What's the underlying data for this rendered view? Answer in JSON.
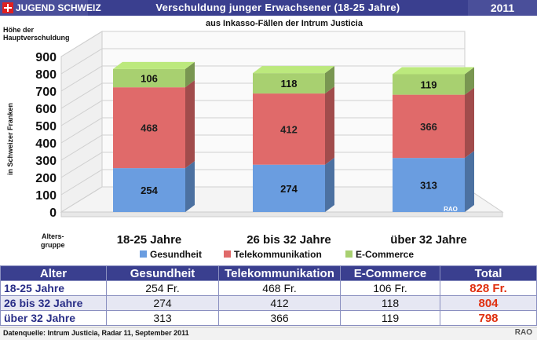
{
  "header": {
    "brand": "JUGEND SCHWEIZ",
    "title": "Verschuldung junger Erwachsener (18-25 Jahre)",
    "year": "2011"
  },
  "chart": {
    "subtitle": "aus Inkasso-Fällen der Intrum Justicia",
    "y_title_top": "Höhe der\nHauptverschuldung",
    "y_axis_label": "in Schweizer Franken",
    "x_axis_label": "Alters-\ngruppe",
    "watermark": "RAO"
  },
  "chart_data": {
    "type": "bar",
    "stacked": true,
    "categories": [
      "18-25 Jahre",
      "26 bis 32 Jahre",
      "über 32 Jahre"
    ],
    "series": [
      {
        "name": "Gesundheit",
        "values": [
          254,
          274,
          313
        ],
        "color": "#6a9de0"
      },
      {
        "name": "Telekommunikation",
        "values": [
          468,
          412,
          366
        ],
        "color": "#e06a6a"
      },
      {
        "name": "E-Commerce",
        "values": [
          106,
          118,
          119
        ],
        "color": "#a8d070"
      }
    ],
    "ylim": [
      0,
      900
    ],
    "yticks": [
      0,
      100,
      200,
      300,
      400,
      500,
      600,
      700,
      800,
      900
    ],
    "legend_placement": "bottom",
    "grid": true
  },
  "table": {
    "headers": [
      "Alter",
      "Gesundheit",
      "Telekommunikation",
      "E-Commerce",
      "Total"
    ],
    "rows": [
      {
        "label": "18-25 Jahre",
        "g": "254  Fr.",
        "t": "468  Fr.",
        "e": "106  Fr.",
        "total": "828 Fr."
      },
      {
        "label": "26 bis 32 Jahre",
        "g": "274",
        "t": "412",
        "e": "118",
        "total": "804"
      },
      {
        "label": "über 32 Jahre",
        "g": "313",
        "t": "366",
        "e": "119",
        "total": "798"
      }
    ]
  },
  "footer": {
    "source": "Datenquelle: Intrum Justicia, Radar 11, September 2011",
    "credit": "RAO"
  }
}
